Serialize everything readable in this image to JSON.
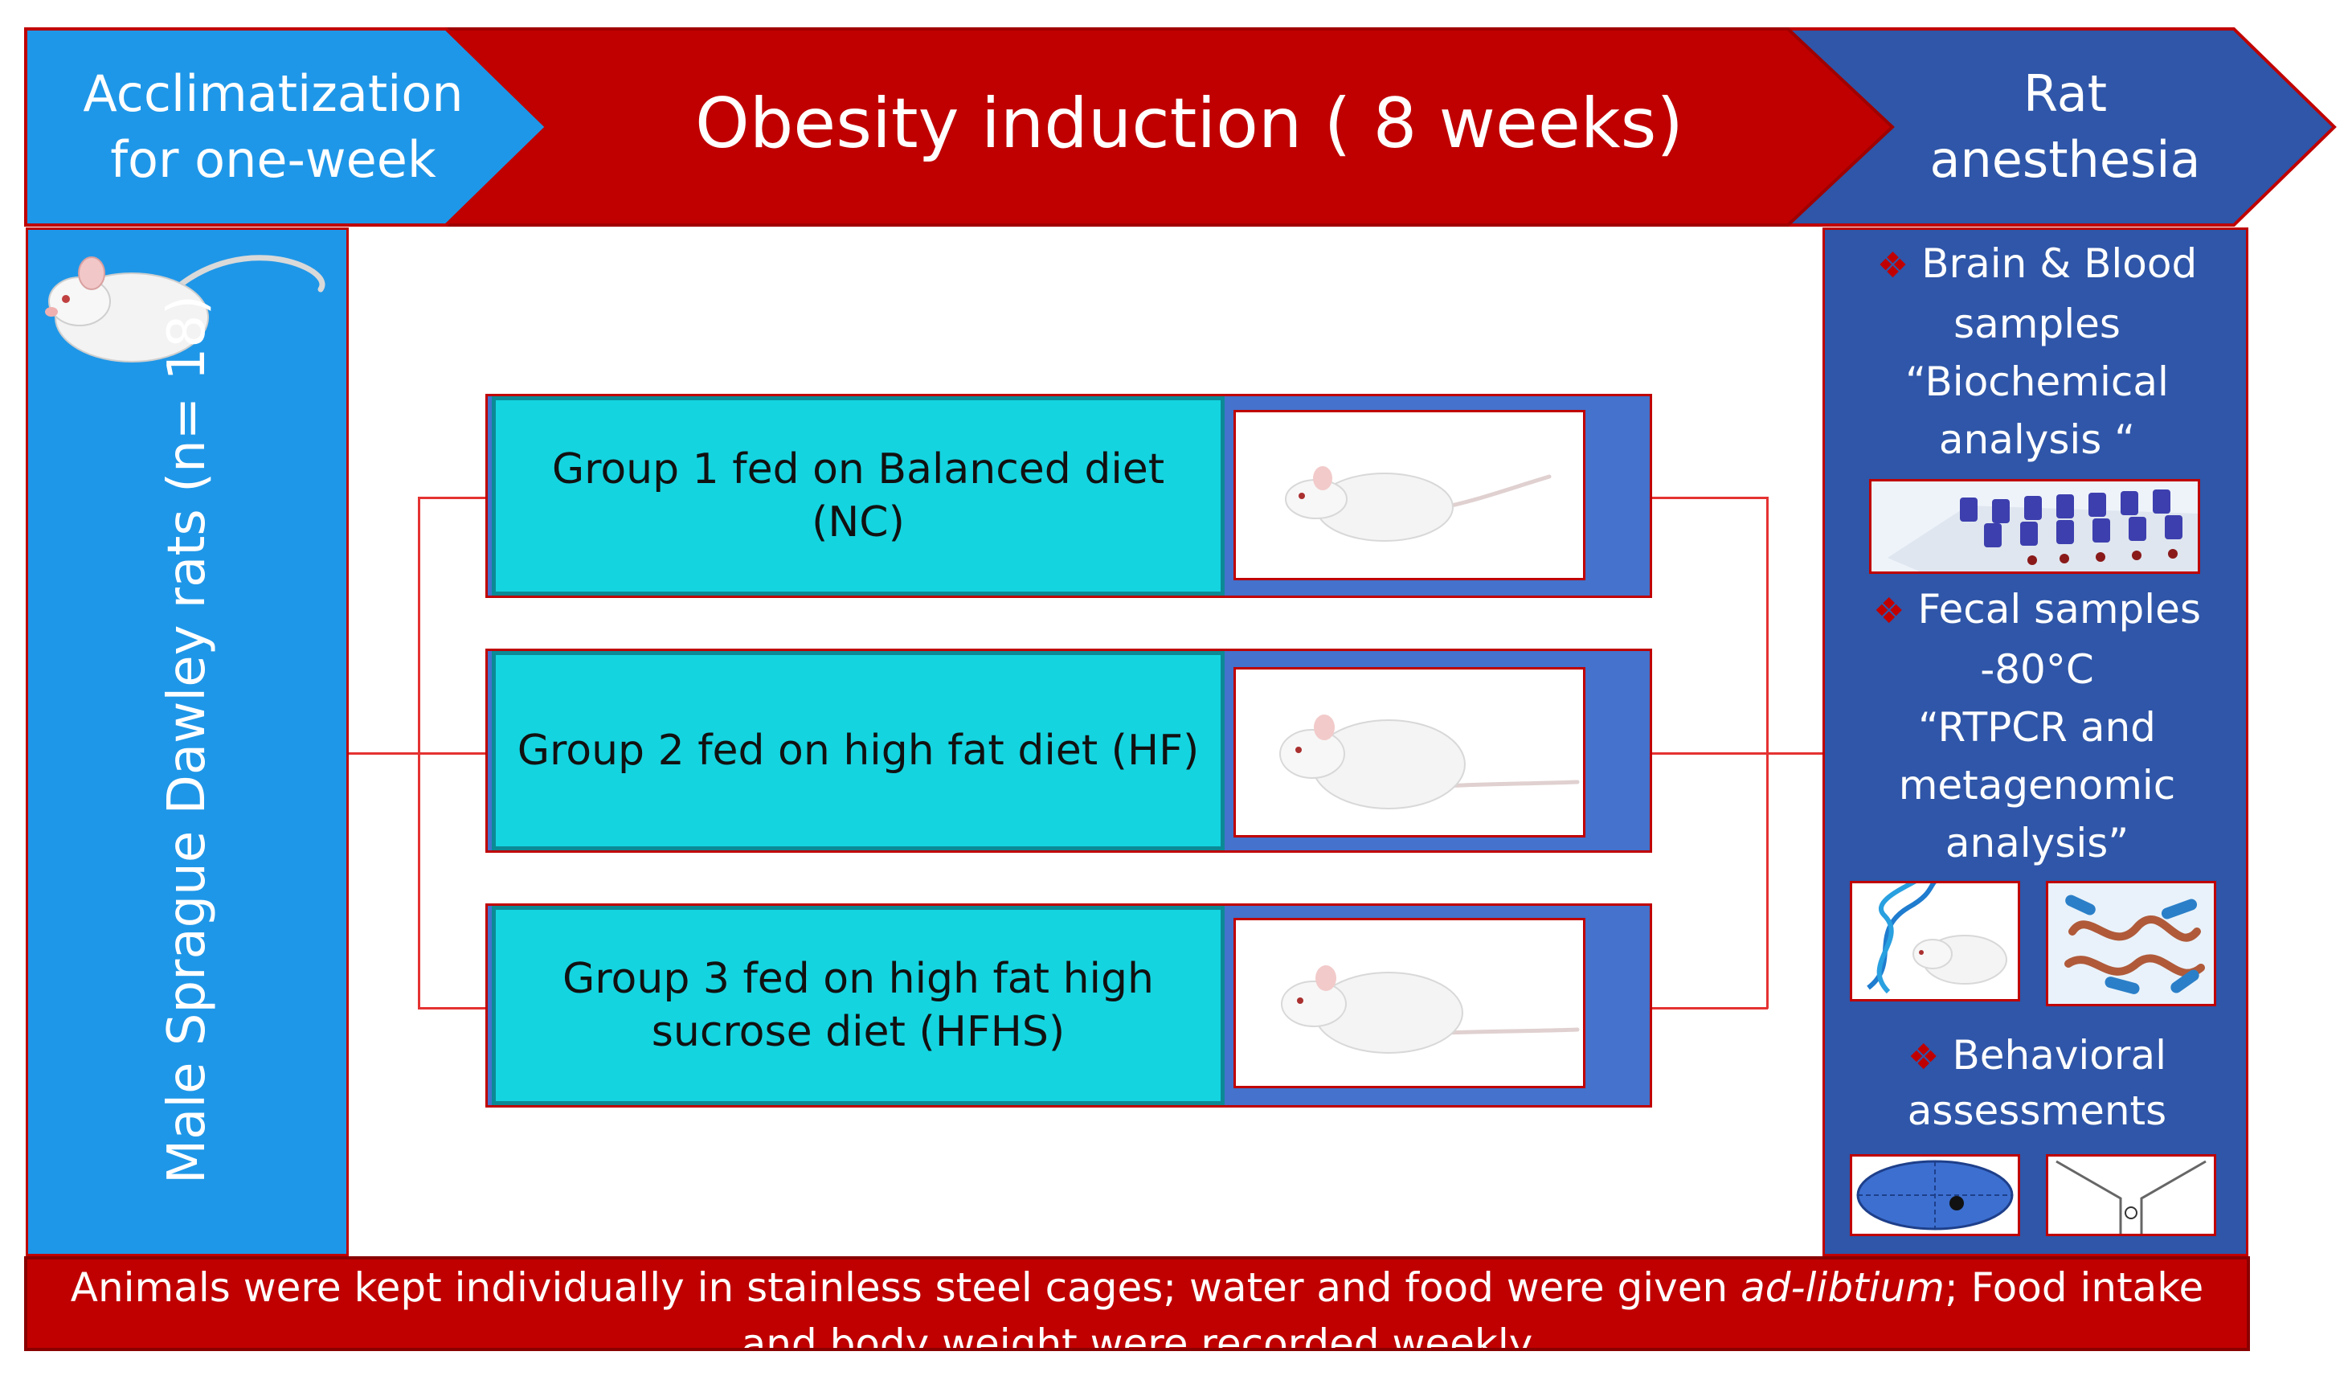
{
  "header": {
    "acclimatization": {
      "line1": "Acclimatization",
      "line2": "for one-week",
      "color": "#1f97e8"
    },
    "induction": {
      "label": "Obesity induction ( 8 weeks)",
      "color": "#c00000"
    },
    "anesthesia": {
      "line1": "Rat",
      "line2": "anesthesia",
      "color": "#2f56a8"
    }
  },
  "left_panel": {
    "label": "Male Sprague Dawley rats  (n= 18)",
    "icon": "rat-icon"
  },
  "groups": [
    {
      "line1": "Group 1 fed on Balanced diet",
      "line2": "(NC)",
      "icon": "rat-icon"
    },
    {
      "line1": "Group 2 fed on high fat diet  (HF)",
      "line2": "",
      "icon": "rat-icon"
    },
    {
      "line1": "Group 3 fed on high fat high",
      "line2": "sucrose diet  (HFHS)",
      "icon": "rat-icon"
    }
  ],
  "right_panel": {
    "brain_blood": {
      "line1": "Brain & Blood",
      "line2": "samples",
      "line3": "“Biochemical",
      "line4": "analysis “"
    },
    "fecal": {
      "line1": "Fecal samples",
      "line2": "-80°C",
      "line3": "“RTPCR and",
      "line4": "metagenomic",
      "line5": "analysis”"
    },
    "behavioral": {
      "line1": "Behavioral",
      "line2": "assessments"
    },
    "bullet_icon": "diamond-cluster-icon"
  },
  "footer": {
    "text_before": "Animals were kept individually in stainless steel cages; water and food were given ",
    "text_italic": "ad-libtium",
    "text_after": "; Food intake and body weight were recorded weekly"
  }
}
